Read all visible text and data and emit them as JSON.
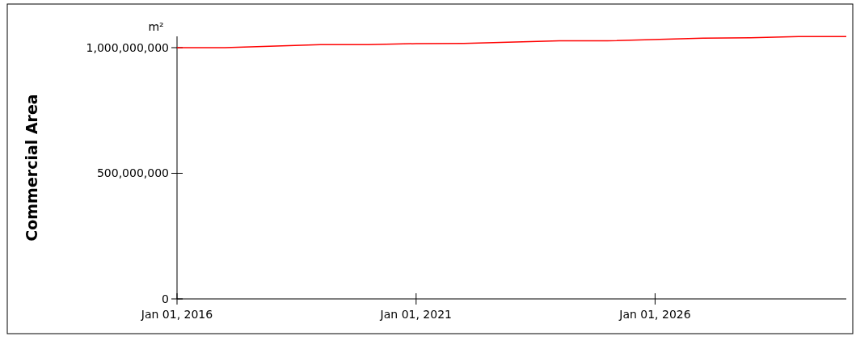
{
  "chart_data": {
    "type": "line",
    "ylabel": "Commercial Area",
    "annotations": [
      "m²"
    ],
    "x": [
      "2016-01-01",
      "2017-01-01",
      "2019-01-01",
      "2020-01-01",
      "2021-01-01",
      "2022-01-01",
      "2024-01-01",
      "2025-01-01",
      "2027-01-01",
      "2028-01-01",
      "2029-01-01",
      "2030-01-01"
    ],
    "series": [
      {
        "color": "#ff0000",
        "values": [
          1000000000,
          1000000000,
          1012000000,
          1012000000,
          1016000000,
          1017000000,
          1027000000,
          1027000000,
          1038000000,
          1039000000,
          1044000000,
          1044000000
        ]
      }
    ],
    "xlim": [
      "2016-01-01",
      "2030-01-01"
    ],
    "xticks": [
      {
        "value": "2016-01-01",
        "label": "Jan 01, 2016"
      },
      {
        "value": "2021-01-01",
        "label": "Jan 01, 2021"
      },
      {
        "value": "2026-01-01",
        "label": "Jan 01, 2026"
      }
    ],
    "ylim": [
      0,
      1045000000
    ],
    "yticks": [
      {
        "value": 0,
        "label": "0"
      },
      {
        "value": 500000000,
        "label": "500,000,000"
      },
      {
        "value": 1000000000,
        "label": "1,000,000,000"
      }
    ],
    "grid": false,
    "marker": "none",
    "line_style": "solid"
  }
}
